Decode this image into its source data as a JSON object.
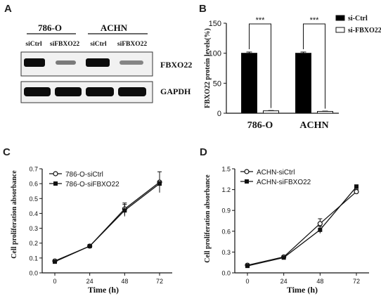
{
  "panels": {
    "A": {
      "letter": "A",
      "cell_lines": [
        "786-O",
        "ACHN"
      ],
      "lanes": [
        "siCtrl",
        "siFBXO22",
        "siCtrl",
        "siFBXO22"
      ],
      "blots": [
        "FBXO22",
        "GAPDH"
      ]
    },
    "B": {
      "letter": "B"
    },
    "C": {
      "letter": "C"
    },
    "D": {
      "letter": "D"
    }
  },
  "chart_data": [
    {
      "panel": "B",
      "type": "bar",
      "categories": [
        "786-O",
        "ACHN"
      ],
      "series": [
        {
          "name": "si-Ctrl",
          "values": [
            100,
            100
          ],
          "errors": [
            2,
            2
          ],
          "color": "#000000"
        },
        {
          "name": "si-FBXO22",
          "values": [
            4,
            3
          ],
          "errors": [
            0.5,
            0.5
          ],
          "color": "#ffffff"
        }
      ],
      "ylabel": "FBXO22 protein levels(%)",
      "xlabel": "",
      "ylim": [
        0,
        150
      ],
      "yticks": [
        0,
        50,
        100,
        150
      ],
      "significance": [
        "***",
        "***"
      ],
      "legend": "top-right"
    },
    {
      "panel": "C",
      "type": "line",
      "x": [
        0,
        24,
        48,
        72
      ],
      "series": [
        {
          "name": "786-O-siCtrl",
          "values": [
            0.08,
            0.18,
            0.43,
            0.61
          ],
          "errors": [
            0.005,
            0.005,
            0.04,
            0.07
          ],
          "marker": "open-circle"
        },
        {
          "name": "786-O-siFBXO22",
          "values": [
            0.075,
            0.18,
            0.42,
            0.6
          ],
          "errors": [
            0.005,
            0.005,
            0.04,
            0.015
          ],
          "marker": "filled-square"
        }
      ],
      "xlabel": "Time (h)",
      "ylabel": "Cell proliferation absorbance",
      "ylim": [
        0,
        0.7
      ],
      "yticks": [
        0,
        0.1,
        0.2,
        0.3,
        0.4,
        0.5,
        0.6,
        0.7
      ],
      "xticks": [
        0,
        24,
        48,
        72
      ],
      "legend": "top-left"
    },
    {
      "panel": "D",
      "type": "line",
      "x": [
        0,
        24,
        48,
        72
      ],
      "series": [
        {
          "name": "ACHN-siCtrl",
          "values": [
            0.11,
            0.23,
            0.71,
            1.17
          ],
          "errors": [
            0.02,
            0.02,
            0.07,
            0.03
          ],
          "marker": "open-circle"
        },
        {
          "name": "ACHN-siFBXO22",
          "values": [
            0.1,
            0.22,
            0.62,
            1.24
          ],
          "errors": [
            0.02,
            0.02,
            0.05,
            0.03
          ],
          "marker": "filled-square"
        }
      ],
      "xlabel": "Time (h)",
      "ylabel": "Cell proliferation absorbance",
      "ylim": [
        0,
        1.5
      ],
      "yticks": [
        0,
        0.3,
        0.6,
        0.9,
        1.2,
        1.5
      ],
      "xticks": [
        0,
        24,
        48,
        72
      ],
      "legend": "top-left"
    }
  ]
}
